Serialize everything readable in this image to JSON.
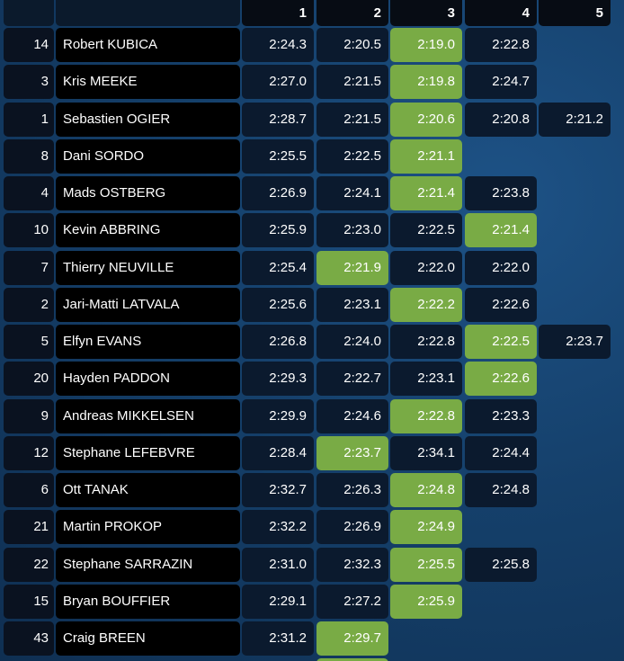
{
  "header": {
    "stages": [
      "1",
      "2",
      "3",
      "4",
      "5"
    ]
  },
  "colors": {
    "best_time": "#79ab45",
    "time_cell": "#0b1a2e",
    "name_cell": "#000000",
    "background": "#15406b"
  },
  "rows": [
    {
      "num": "14",
      "driver": "Robert KUBICA",
      "times": [
        "2:24.3",
        "2:20.5",
        "2:19.0",
        "2:22.8",
        ""
      ],
      "best": 2
    },
    {
      "num": "3",
      "driver": "Kris MEEKE",
      "times": [
        "2:27.0",
        "2:21.5",
        "2:19.8",
        "2:24.7",
        ""
      ],
      "best": 2
    },
    {
      "num": "1",
      "driver": "Sebastien OGIER",
      "times": [
        "2:28.7",
        "2:21.5",
        "2:20.6",
        "2:20.8",
        "2:21.2"
      ],
      "best": 2
    },
    {
      "num": "8",
      "driver": "Dani SORDO",
      "times": [
        "2:25.5",
        "2:22.5",
        "2:21.1",
        "",
        ""
      ],
      "best": 2
    },
    {
      "num": "4",
      "driver": "Mads OSTBERG",
      "times": [
        "2:26.9",
        "2:24.1",
        "2:21.4",
        "2:23.8",
        ""
      ],
      "best": 2
    },
    {
      "num": "10",
      "driver": "Kevin ABBRING",
      "times": [
        "2:25.9",
        "2:23.0",
        "2:22.5",
        "2:21.4",
        ""
      ],
      "best": 3
    },
    {
      "num": "7",
      "driver": "Thierry NEUVILLE",
      "times": [
        "2:25.4",
        "2:21.9",
        "2:22.0",
        "2:22.0",
        ""
      ],
      "best": 1
    },
    {
      "num": "2",
      "driver": "Jari-Matti LATVALA",
      "times": [
        "2:25.6",
        "2:23.1",
        "2:22.2",
        "2:22.6",
        ""
      ],
      "best": 2
    },
    {
      "num": "5",
      "driver": "Elfyn EVANS",
      "times": [
        "2:26.8",
        "2:24.0",
        "2:22.8",
        "2:22.5",
        "2:23.7"
      ],
      "best": 3
    },
    {
      "num": "20",
      "driver": "Hayden PADDON",
      "times": [
        "2:29.3",
        "2:22.7",
        "2:23.1",
        "2:22.6",
        ""
      ],
      "best": 3
    },
    {
      "num": "9",
      "driver": "Andreas MIKKELSEN",
      "times": [
        "2:29.9",
        "2:24.6",
        "2:22.8",
        "2:23.3",
        ""
      ],
      "best": 2
    },
    {
      "num": "12",
      "driver": "Stephane LEFEBVRE",
      "times": [
        "2:28.4",
        "2:23.7",
        "2:34.1",
        "2:24.4",
        ""
      ],
      "best": 1
    },
    {
      "num": "6",
      "driver": "Ott TANAK",
      "times": [
        "2:32.7",
        "2:26.3",
        "2:24.8",
        "2:24.8",
        ""
      ],
      "best": 2
    },
    {
      "num": "21",
      "driver": "Martin PROKOP",
      "times": [
        "2:32.2",
        "2:26.9",
        "2:24.9",
        "",
        ""
      ],
      "best": 2
    },
    {
      "num": "22",
      "driver": "Stephane SARRAZIN",
      "times": [
        "2:31.0",
        "2:32.3",
        "2:25.5",
        "2:25.8",
        ""
      ],
      "best": 2
    },
    {
      "num": "15",
      "driver": "Bryan BOUFFIER",
      "times": [
        "2:29.1",
        "2:27.2",
        "2:25.9",
        "",
        ""
      ],
      "best": 2
    },
    {
      "num": "43",
      "driver": "Craig BREEN",
      "times": [
        "2:31.2",
        "2:29.7",
        "",
        "",
        ""
      ],
      "best": 1
    }
  ]
}
